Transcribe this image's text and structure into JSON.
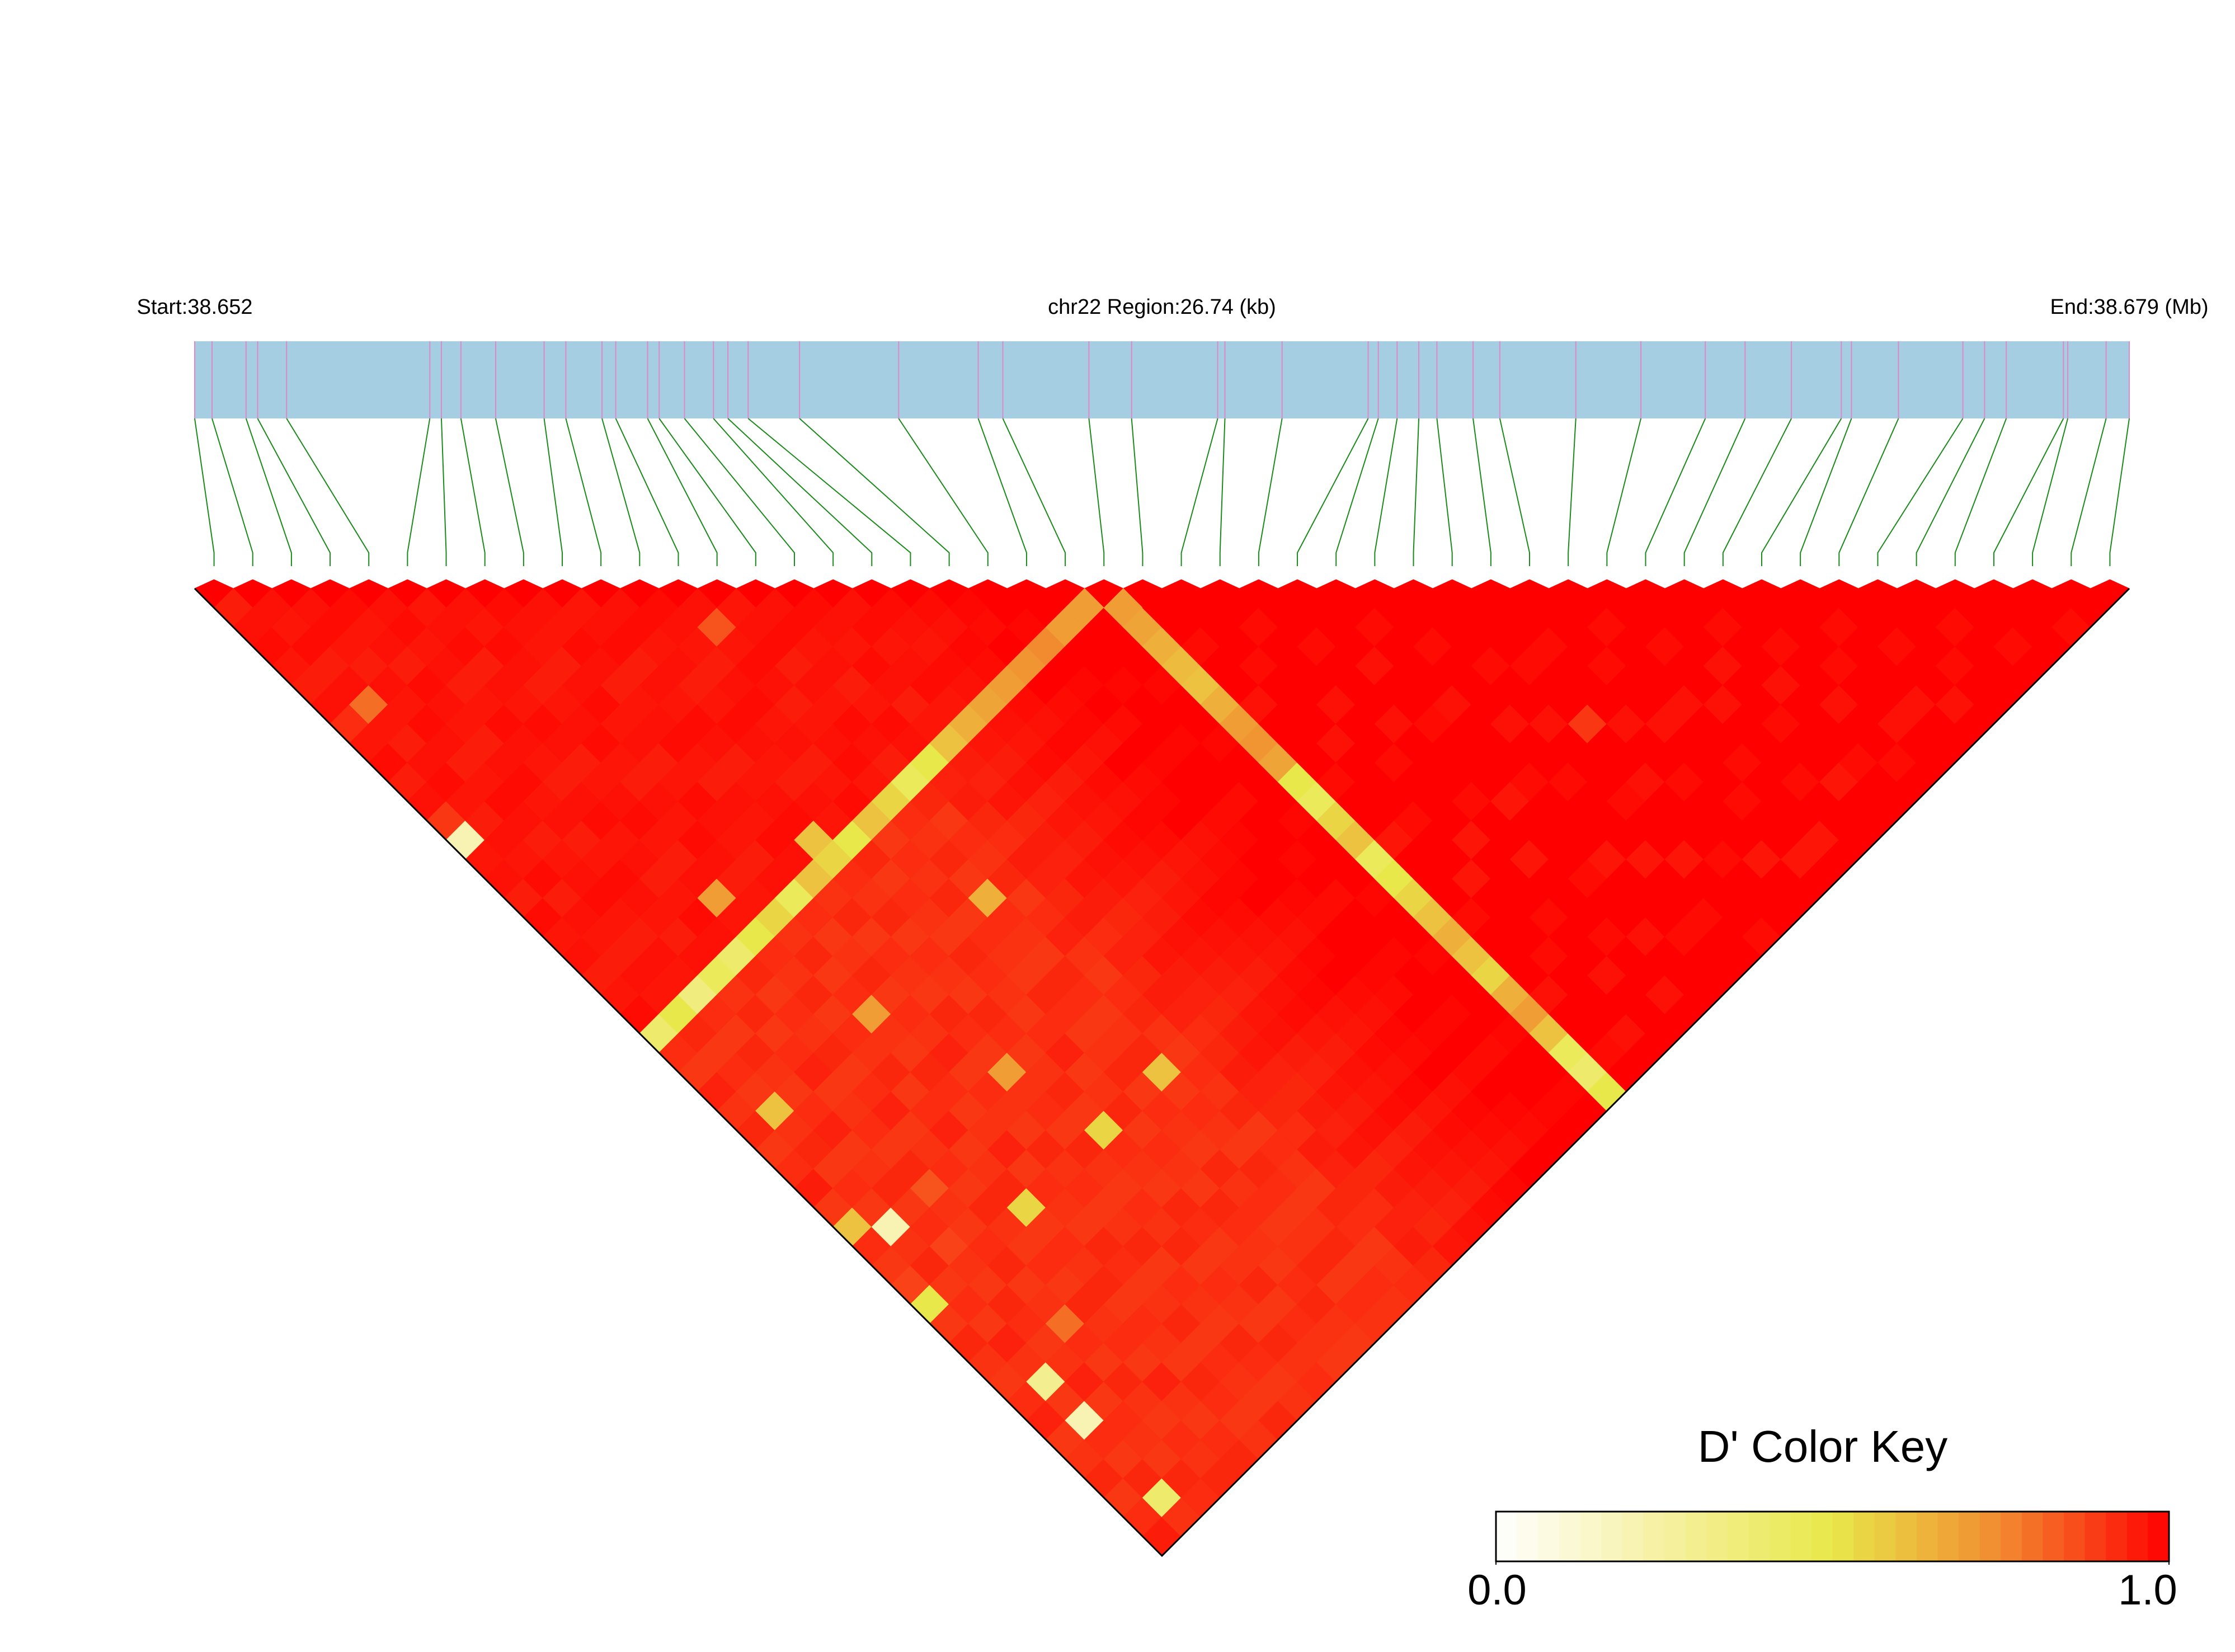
{
  "chart_data": {
    "type": "heatmap",
    "start_label": "Start:38.652",
    "region_label": "chr22 Region:26.74 (kb)",
    "end_label": "End:38.679 (Mb)",
    "xlim": [
      0,
      26.74
    ],
    "snp_positions": [
      0,
      0.24,
      0.71,
      0.87,
      1.27,
      3.25,
      3.41,
      3.68,
      4.16,
      4.83,
      5.13,
      5.63,
      5.82,
      6.26,
      6.42,
      6.77,
      7.17,
      7.37,
      7.65,
      8.36,
      9.73,
      10.83,
      11.17,
      12.36,
      12.95,
      14.14,
      14.24,
      15.03,
      16.22,
      16.36,
      16.62,
      16.92,
      17.17,
      17.67,
      18.04,
      19.09,
      19.99,
      20.88,
      21.43,
      22.07,
      22.76,
      22.9,
      23.55,
      24.44,
      24.74,
      25.04,
      25.83,
      25.89,
      26.42,
      26.74
    ],
    "bar_color": "#a6cee3",
    "position_line_color": "#dd88c8",
    "link_color": "#1a8a1a",
    "colorscale": [
      "#ffffff",
      "#f6f0a0",
      "#e8e84a",
      "#f28a30",
      "#ff0000"
    ],
    "clim": [
      0,
      1
    ],
    "colorbar_title": "D' Color Key",
    "colorbar_ticks": [
      {
        "value": 0,
        "label": "0.0"
      },
      {
        "value": 1,
        "label": "1.0"
      }
    ],
    "dprime": [
      [
        0.95,
        0.97,
        0.98,
        0.96,
        0.95,
        0.97,
        0.92,
        0.96,
        0.98,
        0.95,
        0.97,
        0.9,
        0.2,
        0.96,
        0.97,
        0.95,
        0.98,
        0.96,
        0.97,
        0.95,
        0.96,
        0.98,
        0.4,
        0.92,
        0.9,
        0.94,
        0.91,
        0.93,
        0.9,
        0.92,
        0.95,
        0.9,
        0.6,
        0.92,
        0.9,
        0.88,
        0.5,
        0.9,
        0.93,
        0.91,
        0.9,
        0.92,
        0.94,
        0.9,
        0.91,
        0.93,
        0.9,
        0.92,
        0.95
      ],
      [
        0.97,
        0.96,
        0.98,
        0.95,
        0.97,
        0.8,
        0.96,
        0.95,
        0.97,
        0.98,
        0.96,
        0.95,
        0.97,
        0.96,
        0.98,
        0.95,
        0.97,
        0.96,
        0.95,
        0.97,
        0.96,
        0.5,
        0.93,
        0.9,
        0.92,
        0.9,
        0.6,
        0.91,
        0.93,
        0.9,
        0.92,
        0.9,
        0.2,
        0.91,
        0.93,
        0.9,
        0.92,
        0.9,
        0.94,
        0.91,
        0.3,
        0.9,
        0.2,
        0.92,
        0.9,
        0.93,
        0.4,
        0.91
      ],
      [
        0.97,
        0.98,
        0.96,
        0.95,
        0.97,
        0.96,
        0.98,
        0.97,
        0.95,
        0.96,
        0.98,
        0.97,
        0.95,
        0.96,
        0.97,
        0.98,
        0.96,
        0.95,
        0.97,
        0.96,
        0.35,
        0.92,
        0.9,
        0.93,
        0.91,
        0.9,
        0.92,
        0.94,
        0.9,
        0.91,
        0.93,
        0.9,
        0.92,
        0.88,
        0.91,
        0.9,
        0.93,
        0.92,
        0.9,
        0.91,
        0.94,
        0.9,
        0.92,
        0.91,
        0.9,
        0.93,
        0.92
      ],
      [
        0.98,
        0.96,
        0.97,
        0.95,
        0.98,
        0.97,
        0.96,
        0.95,
        0.97,
        0.98,
        0.96,
        0.97,
        0.95,
        0.96,
        0.98,
        0.97,
        0.96,
        0.95,
        0.97,
        0.45,
        0.91,
        0.93,
        0.9,
        0.92,
        0.94,
        0.9,
        0.91,
        0.92,
        0.9,
        0.93,
        0.85,
        0.91,
        0.9,
        0.92,
        0.93,
        0.9,
        0.91,
        0.8,
        0.92,
        0.9,
        0.93,
        0.91,
        0.9,
        0.92,
        0.91,
        0.93
      ],
      [
        0.97,
        0.98,
        0.96,
        0.97,
        0.95,
        0.96,
        0.98,
        0.97,
        0.96,
        0.95,
        0.97,
        0.98,
        0.96,
        0.97,
        0.95,
        0.96,
        0.98,
        0.97,
        0.4,
        0.93,
        0.9,
        0.92,
        0.91,
        0.93,
        0.9,
        0.92,
        0.94,
        0.9,
        0.91,
        0.92,
        0.9,
        0.93,
        0.91,
        0.9,
        0.92,
        0.9,
        0.93,
        0.91,
        0.92,
        0.9,
        0.94,
        0.91,
        0.9,
        0.92,
        0.93
      ],
      [
        0.96,
        0.97,
        0.98,
        0.95,
        0.97,
        0.96,
        0.98,
        0.97,
        0.95,
        0.96,
        0.97,
        0.98,
        0.96,
        0.95,
        0.97,
        0.7,
        0.96,
        0.5,
        0.92,
        0.91,
        0.93,
        0.9,
        0.92,
        0.91,
        0.93,
        0.9,
        0.92,
        0.94,
        0.9,
        0.91,
        0.93,
        0.55,
        0.9,
        0.92,
        0.91,
        0.93,
        0.9,
        0.92,
        0.91,
        0.9,
        0.93,
        0.92,
        0.9,
        0.91
      ],
      [
        0.97,
        0.96,
        0.98,
        0.97,
        0.95,
        0.96,
        0.97,
        0.98,
        0.96,
        0.95,
        0.97,
        0.96,
        0.98,
        0.97,
        0.95,
        0.96,
        0.55,
        0.91,
        0.93,
        0.9,
        0.92,
        0.7,
        0.91,
        0.9,
        0.93,
        0.92,
        0.9,
        0.91,
        0.94,
        0.9,
        0.92,
        0.91,
        0.9,
        0.93,
        0.92,
        0.9,
        0.91,
        0.93,
        0.9,
        0.92,
        0.91,
        0.9,
        0.93
      ],
      [
        0.98,
        0.97,
        0.96,
        0.95,
        0.97,
        0.98,
        0.96,
        0.97,
        0.95,
        0.96,
        0.98,
        0.97,
        0.96,
        0.95,
        0.97,
        0.45,
        0.92,
        0.9,
        0.91,
        0.93,
        0.9,
        0.92,
        0.91,
        0.94,
        0.9,
        0.92,
        0.91,
        0.9,
        0.93,
        0.91,
        0.92,
        0.9,
        0.91,
        0.93,
        0.9,
        0.92,
        0.91,
        0.9,
        0.93,
        0.92,
        0.9,
        0.91
      ],
      [
        0.97,
        0.96,
        0.98,
        0.97,
        0.95,
        0.96,
        0.97,
        0.98,
        0.96,
        0.95,
        0.97,
        0.96,
        0.98,
        0.97,
        0.6,
        0.91,
        0.93,
        0.9,
        0.92,
        0.91,
        0.9,
        0.93,
        0.92,
        0.9,
        0.7,
        0.91,
        0.92,
        0.9,
        0.93,
        0.91,
        0.9,
        0.92,
        0.91,
        0.93,
        0.9,
        0.92,
        0.91,
        0.9,
        0.93,
        0.91,
        0.92
      ],
      [
        0.96,
        0.97,
        0.98,
        0.95,
        0.97,
        0.96,
        0.98,
        0.97,
        0.95,
        0.96,
        0.97,
        0.98,
        0.6,
        0.55,
        0.92,
        0.91,
        0.93,
        0.9,
        0.92,
        0.91,
        0.9,
        0.93,
        0.92,
        0.9,
        0.91,
        0.93,
        0.9,
        0.55,
        0.92,
        0.91,
        0.9,
        0.93,
        0.92,
        0.9,
        0.91,
        0.93,
        0.9,
        0.92,
        0.91,
        0.9
      ],
      [
        0.97,
        0.98,
        0.96,
        0.97,
        0.95,
        0.96,
        0.98,
        0.97,
        0.96,
        0.95,
        0.97,
        0.96,
        0.5,
        0.93,
        0.9,
        0.92,
        0.91,
        0.9,
        0.93,
        0.92,
        0.91,
        0.9,
        0.92,
        0.94,
        0.9,
        0.91,
        0.93,
        0.9,
        0.92,
        0.91,
        0.9,
        0.93,
        0.92,
        0.91,
        0.9,
        0.92,
        0.93,
        0.91,
        0.9
      ],
      [
        0.98,
        0.97,
        0.96,
        0.95,
        0.97,
        0.98,
        0.96,
        0.97,
        0.95,
        0.96,
        0.98,
        0.6,
        0.9,
        0.92,
        0.91,
        0.93,
        0.9,
        0.92,
        0.91,
        0.9,
        0.93,
        0.92,
        0.9,
        0.91,
        0.93,
        0.9,
        0.92,
        0.91,
        0.9,
        0.93,
        0.91,
        0.92,
        0.9,
        0.91,
        0.93,
        0.9,
        0.92,
        0.91
      ],
      [
        0.97,
        0.85,
        0.96,
        0.98,
        0.97,
        0.95,
        0.96,
        0.97,
        0.98,
        0.96,
        0.55,
        0.92,
        0.91,
        0.93,
        0.9,
        0.65,
        0.92,
        0.91,
        0.9,
        0.93,
        0.92,
        0.9,
        0.91,
        0.93,
        0.6,
        0.9,
        0.92,
        0.91,
        0.9,
        0.93,
        0.92,
        0.9,
        0.91,
        0.93,
        0.9,
        0.92,
        0.91
      ],
      [
        0.96,
        0.97,
        0.98,
        0.95,
        0.97,
        0.96,
        0.98,
        0.97,
        0.95,
        0.45,
        0.93,
        0.9,
        0.92,
        0.91,
        0.93,
        0.9,
        0.92,
        0.94,
        0.91,
        0.9,
        0.92,
        0.93,
        0.91,
        0.9,
        0.92,
        0.91,
        0.93,
        0.9,
        0.92,
        0.91,
        0.9,
        0.93,
        0.92,
        0.9,
        0.91,
        0.92
      ],
      [
        0.97,
        0.98,
        0.96,
        0.97,
        0.95,
        0.96,
        0.98,
        0.97,
        0.5,
        0.94,
        0.95,
        0.93,
        0.92,
        0.95,
        0.94,
        0.93,
        0.95,
        0.92,
        0.94,
        0.93,
        0.95,
        0.94,
        0.92,
        0.93,
        0.95,
        0.94,
        0.93,
        0.92,
        0.95,
        0.94,
        0.93,
        0.92,
        0.94,
        0.95,
        0.93
      ],
      [
        0.98,
        0.97,
        0.96,
        0.98,
        0.97,
        0.95,
        0.96,
        0.6,
        0.95,
        0.94,
        0.96,
        0.93,
        0.95,
        0.94,
        0.96,
        0.95,
        0.93,
        0.94,
        0.96,
        0.95,
        0.94,
        0.93,
        0.95,
        0.96,
        0.94,
        0.93,
        0.95,
        0.94,
        0.96,
        0.93,
        0.95,
        0.94,
        0.93,
        0.96
      ],
      [
        0.97,
        0.98,
        0.96,
        0.97,
        0.98,
        0.96,
        0.65,
        0.96,
        0.95,
        0.97,
        0.94,
        0.96,
        0.95,
        0.97,
        0.96,
        0.94,
        0.95,
        0.97,
        0.96,
        0.95,
        0.94,
        0.96,
        0.97,
        0.95,
        0.94,
        0.96,
        0.95,
        0.97,
        0.94,
        0.96,
        0.95,
        0.94,
        0.97
      ],
      [
        0.98,
        0.97,
        0.96,
        0.98,
        0.97,
        0.68,
        0.97,
        0.96,
        0.98,
        0.95,
        0.97,
        0.96,
        0.98,
        0.97,
        0.95,
        0.96,
        0.98,
        0.97,
        0.96,
        0.95,
        0.97,
        0.98,
        0.96,
        0.95,
        0.97,
        0.96,
        0.98,
        0.95,
        0.97,
        0.96,
        0.95,
        0.98
      ],
      [
        0.98,
        0.97,
        0.99,
        0.98,
        0.7,
        0.98,
        0.97,
        0.99,
        0.96,
        0.98,
        0.97,
        0.99,
        0.98,
        0.96,
        0.97,
        0.99,
        0.98,
        0.97,
        0.96,
        0.98,
        0.99,
        0.97,
        0.96,
        0.98,
        0.97,
        0.99,
        0.96,
        0.98,
        0.97,
        0.96,
        0.99
      ],
      [
        0.99,
        0.98,
        1,
        0.72,
        1,
        0.98,
        0.99,
        0.97,
        1,
        0.98,
        0.99,
        1,
        0.97,
        0.98,
        0.99,
        1,
        0.98,
        0.97,
        0.99,
        1,
        0.98,
        0.97,
        0.99,
        0.98,
        1,
        0.97,
        0.99,
        0.98,
        0.97,
        1
      ],
      [
        1,
        0.99,
        0.75,
        1,
        0.99,
        1,
        0.98,
        1,
        0.99,
        1,
        1,
        0.98,
        0.99,
        1,
        1,
        0.99,
        0.98,
        1,
        1,
        0.99,
        0.98,
        1,
        0.99,
        1,
        0.98,
        1,
        0.99,
        0.98,
        1
      ],
      [
        1,
        0.7,
        1,
        1,
        0.99,
        1,
        1,
        0.99,
        1,
        1,
        0.98,
        1,
        1,
        0.99,
        1,
        0.98,
        1,
        1,
        0.99,
        1,
        1,
        0.99,
        1,
        0.98,
        1,
        1,
        0.99,
        1
      ],
      [
        0.7,
        1,
        1,
        1,
        0.99,
        1,
        1,
        0.99,
        1,
        1,
        1,
        0.99,
        1,
        1,
        1,
        0.99,
        1,
        1,
        0.99,
        1,
        1,
        1,
        0.99,
        1,
        1,
        0.99,
        1
      ],
      [
        0.7,
        0.68,
        0.65,
        0.62,
        0.6,
        0.65,
        0.7,
        0.72,
        0.68,
        0.5,
        0.45,
        0.55,
        0.6,
        0.45,
        0.5,
        0.55,
        0.6,
        0.65,
        0.6,
        0.55,
        0.65,
        0.7,
        0.6,
        0.45,
        0.4,
        0.5
      ],
      [
        1,
        1,
        0.98,
        1,
        1,
        0.97,
        1,
        1,
        1,
        0.98,
        1,
        1,
        0.96,
        1,
        1,
        1,
        0.98,
        1,
        1,
        1,
        0.97,
        1,
        1,
        0.98,
        1
      ],
      [
        1,
        1,
        1,
        0.98,
        1,
        1,
        1,
        0.97,
        1,
        1,
        1,
        0.98,
        1,
        1,
        0.96,
        1,
        1,
        1,
        0.98,
        1,
        1,
        1,
        0.97,
        1
      ],
      [
        1,
        0.98,
        1,
        1,
        1,
        0.97,
        1,
        1,
        0.98,
        1,
        1,
        1,
        0.96,
        1,
        1,
        1,
        0.98,
        1,
        1,
        0.97,
        1,
        1,
        1
      ],
      [
        1,
        1,
        0.98,
        1,
        1,
        1,
        0.97,
        1,
        1,
        1,
        0.98,
        1,
        1,
        0.96,
        1,
        1,
        1,
        0.98,
        1,
        1,
        0.97,
        1
      ],
      [
        1,
        1,
        1,
        0.97,
        1,
        1,
        0.98,
        1,
        1,
        1,
        0.96,
        1,
        1,
        1,
        0.98,
        1,
        1,
        0.97,
        1,
        1,
        1
      ],
      [
        1,
        0.98,
        1,
        1,
        1,
        0.97,
        1,
        1,
        1,
        0.98,
        1,
        1,
        1,
        0.96,
        1,
        1,
        1,
        0.98,
        1,
        1
      ],
      [
        1,
        1,
        0.98,
        1,
        1,
        1,
        0.97,
        1,
        1,
        0.98,
        1,
        1,
        1,
        0.96,
        1,
        1,
        0.98,
        1,
        1
      ],
      [
        1,
        1,
        1,
        0.98,
        1,
        1,
        0.97,
        1,
        1,
        1,
        0.98,
        1,
        1,
        0.96,
        1,
        1,
        1,
        0.98
      ],
      [
        1,
        1,
        1,
        0.98,
        1,
        1,
        0.9,
        1,
        1,
        0.97,
        1,
        1,
        1,
        0.98,
        1,
        1,
        1
      ],
      [
        1,
        1,
        0.98,
        1,
        1,
        1,
        0.97,
        1,
        1,
        0.98,
        1,
        1,
        1,
        0.96,
        1,
        1
      ],
      [
        1,
        1,
        1,
        0.98,
        1,
        1,
        0.97,
        1,
        1,
        1,
        0.98,
        1,
        1,
        0.96,
        1
      ],
      [
        1,
        0.98,
        1,
        1,
        1,
        0.97,
        1,
        1,
        0.98,
        1,
        1,
        1,
        0.96,
        1
      ],
      [
        1,
        1,
        0.98,
        1,
        1,
        0.97,
        1,
        1,
        1,
        0.98,
        1,
        1,
        1
      ],
      [
        1,
        1,
        1,
        0.97,
        1,
        1,
        0.98,
        1,
        1,
        0.96,
        1,
        1
      ],
      [
        1,
        0.98,
        1,
        1,
        0.97,
        1,
        1,
        1,
        0.98,
        1,
        1
      ],
      [
        1,
        1,
        0.98,
        1,
        1,
        0.97,
        1,
        1,
        0.98,
        1
      ],
      [
        1,
        1,
        1,
        0.98,
        1,
        1,
        0.97,
        1,
        1
      ],
      [
        1,
        0.98,
        1,
        1,
        1,
        0.97,
        1,
        1
      ],
      [
        1,
        1,
        0.98,
        1,
        1,
        0.97,
        1
      ],
      [
        1,
        1,
        1,
        0.98,
        1,
        1
      ],
      [
        1,
        0.98,
        1,
        1,
        1
      ],
      [
        1,
        1,
        0.98,
        1
      ],
      [
        1,
        1,
        1
      ],
      [
        1,
        0.98
      ],
      [
        1
      ]
    ]
  }
}
